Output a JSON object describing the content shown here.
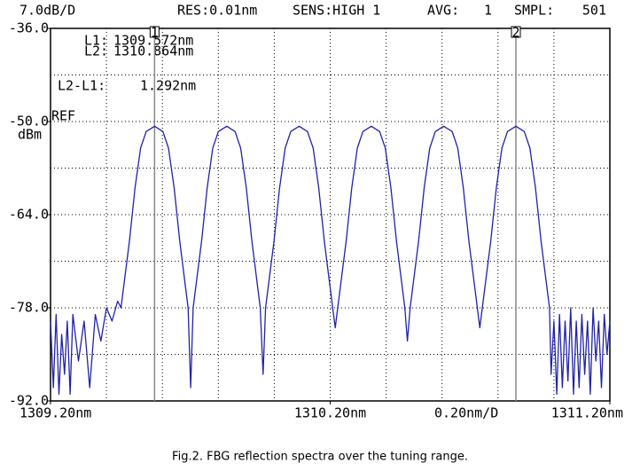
{
  "chart_data": {
    "type": "line",
    "header": {
      "scale": "7.0dB/D",
      "res": "RES:0.01nm",
      "sens": "SENS:HIGH 1",
      "avg_label": "AVG:",
      "avg": 1,
      "smpl_label": "SMPL:",
      "smpl": 501
    },
    "ref_label": "REF",
    "y_unit": "dBm",
    "x_scale_label": "0.20nm/D",
    "caption": "Fig.2. FBG reflection spectra over the tuning range.",
    "markers": [
      {
        "label": "1",
        "x": 1309.572
      },
      {
        "label": "2",
        "x": 1310.864
      }
    ],
    "readouts": [
      {
        "name": "L1:",
        "value": "1309.572nm"
      },
      {
        "name": "L2:",
        "value": "1310.864nm"
      }
    ],
    "delta": {
      "name": "L2-L1:",
      "value": "1.292nm"
    },
    "series": [
      {
        "color": "#2222a8",
        "x": [
          1309.2,
          1309.21,
          1309.22,
          1309.23,
          1309.24,
          1309.25,
          1309.26,
          1309.27,
          1309.28,
          1309.3,
          1309.32,
          1309.34,
          1309.36,
          1309.38,
          1309.4,
          1309.42,
          1309.44,
          1309.452,
          1309.482,
          1309.502,
          1309.522,
          1309.542,
          1309.572,
          1309.602,
          1309.622,
          1309.642,
          1309.662,
          1309.692,
          1309.701,
          1309.71,
          1309.74,
          1309.76,
          1309.78,
          1309.8,
          1309.83,
          1309.86,
          1309.88,
          1309.9,
          1309.92,
          1309.95,
          1309.96,
          1309.969,
          1309.999,
          1310.019,
          1310.039,
          1310.059,
          1310.089,
          1310.119,
          1310.139,
          1310.159,
          1310.179,
          1310.209,
          1310.218,
          1310.227,
          1310.257,
          1310.277,
          1310.297,
          1310.317,
          1310.347,
          1310.377,
          1310.397,
          1310.417,
          1310.437,
          1310.467,
          1310.476,
          1310.486,
          1310.516,
          1310.536,
          1310.556,
          1310.576,
          1310.606,
          1310.636,
          1310.656,
          1310.676,
          1310.696,
          1310.726,
          1310.735,
          1310.744,
          1310.774,
          1310.794,
          1310.814,
          1310.834,
          1310.864,
          1310.894,
          1310.914,
          1310.934,
          1310.954,
          1310.984,
          1310.99,
          1311.0,
          1311.01,
          1311.02,
          1311.03,
          1311.04,
          1311.05,
          1311.06,
          1311.07,
          1311.08,
          1311.09,
          1311.1,
          1311.11,
          1311.12,
          1311.13,
          1311.14,
          1311.15,
          1311.16,
          1311.17,
          1311.18,
          1311.19,
          1311.2
        ],
        "values": [
          -80,
          -90,
          -79,
          -91,
          -82,
          -88,
          -80,
          -91,
          -79,
          -86,
          -80,
          -90,
          -79,
          -83,
          -78,
          -80,
          -77,
          -78,
          -68,
          -60,
          -54,
          -51.5,
          -50.7,
          -51.5,
          -54,
          -60,
          -68,
          -78,
          -90,
          -78,
          -68,
          -60,
          -54,
          -51.5,
          -50.7,
          -51.5,
          -54,
          -60,
          -68,
          -78,
          -88,
          -78,
          -68,
          -60,
          -54,
          -51.5,
          -50.7,
          -51.5,
          -54,
          -60,
          -68,
          -78,
          -81,
          -78,
          -68,
          -60,
          -54,
          -51.5,
          -50.7,
          -51.5,
          -54,
          -60,
          -68,
          -78,
          -83,
          -78,
          -68,
          -60,
          -54,
          -51.5,
          -50.7,
          -51.5,
          -54,
          -60,
          -68,
          -78,
          -81,
          -78,
          -68,
          -60,
          -54,
          -51.5,
          -50.7,
          -51.5,
          -54,
          -60,
          -68,
          -78,
          -88,
          -80,
          -91,
          -79,
          -90,
          -80,
          -89,
          -78,
          -91,
          -80,
          -90,
          -79,
          -88,
          -80,
          -91,
          -78,
          -86,
          -80,
          -90,
          -79,
          -85,
          -80
        ]
      }
    ],
    "xlim": [
      1309.2,
      1311.2
    ],
    "ylim": [
      -92,
      -36
    ],
    "xticks": [
      {
        "value": 1309.2,
        "label": "1309.20nm"
      },
      {
        "value": 1310.2,
        "label": "1310.20nm"
      },
      {
        "value": 1311.2,
        "label": "1311.20nm"
      }
    ],
    "yticks": [
      {
        "value": -36,
        "label": "-36.0"
      },
      {
        "value": -50,
        "label": "-50.0"
      },
      {
        "value": -64,
        "label": "-64.0"
      },
      {
        "value": -78,
        "label": "-78.0"
      },
      {
        "value": -92,
        "label": "-92.0"
      }
    ],
    "xgrid": [
      1309.4,
      1309.6,
      1309.8,
      1310.0,
      1310.2,
      1310.4,
      1310.6,
      1310.8,
      1311.0
    ],
    "ygrid": [
      -43,
      -50,
      -57,
      -64,
      -71,
      -78,
      -85
    ],
    "grid": true
  }
}
